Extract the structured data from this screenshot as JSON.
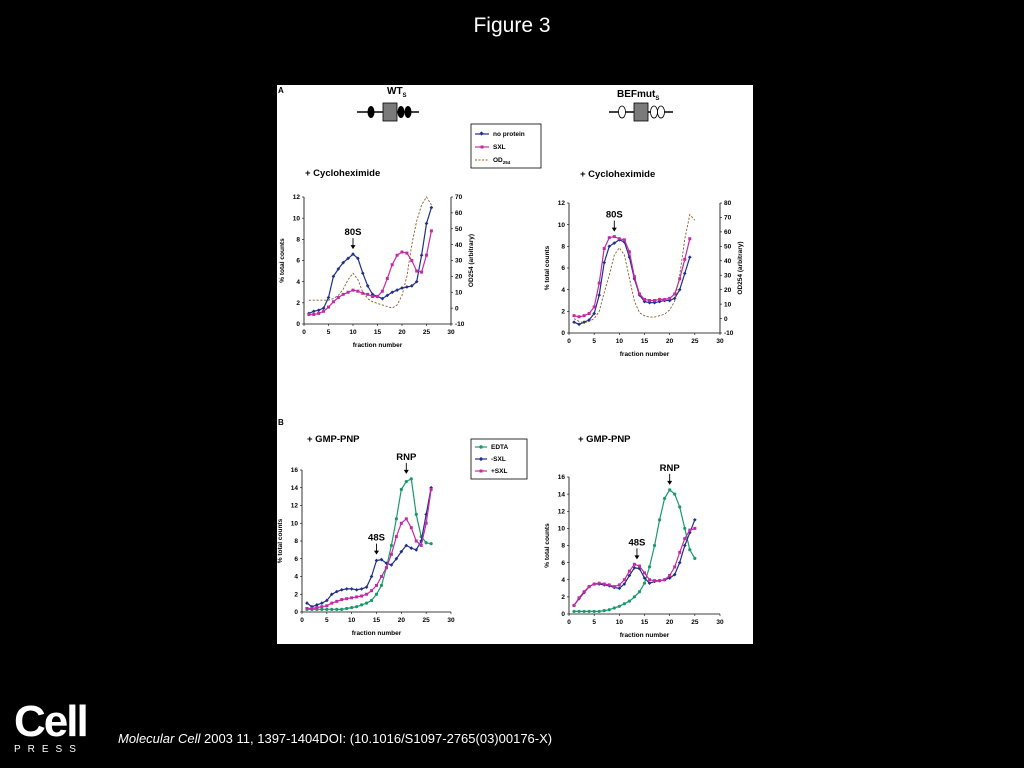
{
  "page": {
    "title": "Figure 3",
    "citation_journal": "Molecular Cell",
    "citation_rest": " 2003 11, 1397-1404DOI: (10.1016/S1097-2765(03)00176-X)",
    "logo_main": "Cell",
    "logo_sub": "PRESS"
  },
  "panel": {
    "label_a": "A",
    "label_b": "B",
    "construct_wt": "WT",
    "construct_wt_sub": "S",
    "construct_mut": "BEFmut",
    "construct_mut_sub": "S",
    "legend_a": [
      {
        "label": "no protein",
        "sub": ""
      },
      {
        "label": "SXL",
        "sub": ""
      },
      {
        "label": "OD",
        "sub": "254"
      }
    ],
    "legend_b": [
      {
        "label": "EDTA"
      },
      {
        "label": "-SXL"
      },
      {
        "label": "+SXL"
      }
    ],
    "colors": {
      "blue": "#1f2f8a",
      "magenta": "#c42aa6",
      "green": "#1a9a6a",
      "od": "#8b5a2b"
    }
  },
  "chart_data": [
    {
      "id": "a-wt",
      "type": "line",
      "title": "+ Cycloheximide",
      "xlabel": "fraction number",
      "ylabel": "% total counts",
      "y2label": "OD254 (arbitrary)",
      "xlim": [
        0,
        30
      ],
      "ylim": [
        0,
        12
      ],
      "y2lim": [
        -10,
        70
      ],
      "xticks": [
        0,
        5,
        10,
        15,
        20,
        25,
        30
      ],
      "yticks": [
        0,
        2,
        4,
        6,
        8,
        10,
        12
      ],
      "y2ticks": [
        -10,
        0,
        10,
        20,
        30,
        40,
        50,
        60,
        70
      ],
      "annotations": [
        {
          "text": "80S",
          "x": 10
        }
      ],
      "series": [
        {
          "name": "no protein",
          "color": "#1f2f8a",
          "marker": "diamond",
          "x": [
            1,
            2,
            3,
            4,
            5,
            6,
            7,
            8,
            9,
            10,
            11,
            12,
            13,
            14,
            15,
            16,
            17,
            18,
            19,
            20,
            21,
            22,
            23,
            24,
            25,
            26
          ],
          "y": [
            1.0,
            1.2,
            1.3,
            1.5,
            2.5,
            4.5,
            5.2,
            5.8,
            6.2,
            6.6,
            6.2,
            4.8,
            3.6,
            2.8,
            2.6,
            2.4,
            2.7,
            3.0,
            3.2,
            3.4,
            3.5,
            3.6,
            4.0,
            6.5,
            9.5,
            11.0
          ]
        },
        {
          "name": "SXL",
          "color": "#c42aa6",
          "marker": "square",
          "x": [
            1,
            2,
            3,
            4,
            5,
            6,
            7,
            8,
            9,
            10,
            11,
            12,
            13,
            14,
            15,
            16,
            17,
            18,
            19,
            20,
            21,
            22,
            23,
            24,
            25,
            26
          ],
          "y": [
            0.9,
            0.9,
            1.0,
            1.2,
            1.6,
            2.1,
            2.5,
            2.8,
            3.0,
            3.2,
            3.1,
            2.9,
            2.8,
            2.6,
            2.6,
            3.1,
            4.3,
            5.6,
            6.5,
            6.8,
            6.7,
            6.0,
            5.0,
            4.9,
            6.5,
            8.8
          ]
        },
        {
          "name": "OD254",
          "color": "#8b5a2b",
          "dash": true,
          "y_axis": "right",
          "x": [
            1,
            2,
            3,
            4,
            5,
            6,
            7,
            8,
            9,
            10,
            11,
            12,
            13,
            14,
            15,
            16,
            17,
            18,
            19,
            20,
            21,
            22,
            23,
            24,
            25,
            26
          ],
          "y": [
            5,
            5,
            5,
            5,
            5,
            6,
            8,
            12,
            18,
            22,
            18,
            10,
            6,
            4,
            3,
            2,
            1,
            0,
            2,
            8,
            20,
            40,
            55,
            65,
            70,
            65
          ]
        }
      ]
    },
    {
      "id": "a-mut",
      "type": "line",
      "title": "+ Cycloheximide",
      "xlabel": "fraction number",
      "ylabel": "% total counts",
      "y2label": "OD254 (arbitrary)",
      "xlim": [
        0,
        30
      ],
      "ylim": [
        0,
        12
      ],
      "y2lim": [
        -10,
        80
      ],
      "xticks": [
        0,
        5,
        10,
        15,
        20,
        25,
        30
      ],
      "yticks": [
        0,
        2,
        4,
        6,
        8,
        10,
        12
      ],
      "y2ticks": [
        -10,
        0,
        10,
        20,
        30,
        40,
        50,
        60,
        70,
        80
      ],
      "annotations": [
        {
          "text": "80S",
          "x": 9
        }
      ],
      "series": [
        {
          "name": "no protein",
          "color": "#1f2f8a",
          "marker": "diamond",
          "x": [
            1,
            2,
            3,
            4,
            5,
            6,
            7,
            8,
            9,
            10,
            11,
            12,
            13,
            14,
            15,
            16,
            17,
            18,
            19,
            20,
            21,
            22,
            23,
            24
          ],
          "y": [
            1.0,
            0.8,
            1.0,
            1.2,
            1.8,
            3.5,
            6.5,
            8.0,
            8.3,
            8.6,
            8.4,
            7.0,
            5.0,
            3.5,
            2.9,
            2.8,
            2.8,
            2.9,
            3.0,
            3.0,
            3.2,
            4.0,
            5.5,
            7.0
          ]
        },
        {
          "name": "SXL",
          "color": "#c42aa6",
          "marker": "square",
          "x": [
            1,
            2,
            3,
            4,
            5,
            6,
            7,
            8,
            9,
            10,
            11,
            12,
            13,
            14,
            15,
            16,
            17,
            18,
            19,
            20,
            21,
            22,
            23,
            24
          ],
          "y": [
            1.6,
            1.5,
            1.6,
            1.8,
            2.4,
            4.6,
            7.8,
            8.8,
            8.9,
            8.7,
            8.6,
            7.5,
            5.2,
            3.6,
            3.1,
            3.0,
            3.0,
            3.1,
            3.1,
            3.2,
            3.6,
            5.0,
            6.8,
            8.7
          ]
        },
        {
          "name": "OD254",
          "color": "#8b5a2b",
          "dash": true,
          "y_axis": "right",
          "x": [
            1,
            2,
            3,
            4,
            5,
            6,
            7,
            8,
            9,
            10,
            11,
            12,
            13,
            14,
            15,
            16,
            17,
            18,
            19,
            20,
            21,
            22,
            23,
            24,
            25
          ],
          "y": [
            0,
            -2,
            -3,
            -2,
            0,
            5,
            18,
            30,
            44,
            49,
            44,
            28,
            12,
            4,
            2,
            1,
            1,
            2,
            3,
            6,
            12,
            30,
            55,
            72,
            68
          ]
        }
      ]
    },
    {
      "id": "b-wt",
      "type": "line",
      "title": "+ GMP-PNP",
      "xlabel": "fraction number",
      "ylabel": "% total counts",
      "xlim": [
        0,
        30
      ],
      "ylim": [
        0,
        16
      ],
      "xticks": [
        0,
        5,
        10,
        15,
        20,
        25,
        30
      ],
      "yticks": [
        0,
        2,
        4,
        6,
        8,
        10,
        12,
        14,
        16
      ],
      "annotations": [
        {
          "text": "48S",
          "x": 15
        },
        {
          "text": "RNP",
          "x": 21
        }
      ],
      "series": [
        {
          "name": "EDTA",
          "color": "#1a9a6a",
          "marker": "circle",
          "x": [
            1,
            2,
            3,
            4,
            5,
            6,
            7,
            8,
            9,
            10,
            11,
            12,
            13,
            14,
            15,
            16,
            17,
            18,
            19,
            20,
            21,
            22,
            23,
            24,
            25,
            26
          ],
          "y": [
            0.3,
            0.3,
            0.3,
            0.3,
            0.3,
            0.3,
            0.3,
            0.3,
            0.4,
            0.5,
            0.6,
            0.8,
            1.0,
            1.3,
            2.0,
            3.0,
            5.0,
            7.5,
            10.5,
            13.8,
            14.7,
            15.0,
            11.0,
            8.5,
            7.8,
            7.7
          ]
        },
        {
          "name": "-SXL",
          "color": "#1f2f8a",
          "marker": "diamond",
          "x": [
            1,
            2,
            3,
            4,
            5,
            6,
            7,
            8,
            9,
            10,
            11,
            12,
            13,
            14,
            15,
            16,
            17,
            18,
            19,
            20,
            21,
            22,
            23,
            24,
            25,
            26
          ],
          "y": [
            1.0,
            0.6,
            0.8,
            1.0,
            1.3,
            2.0,
            2.3,
            2.5,
            2.6,
            2.6,
            2.5,
            2.6,
            2.8,
            4.0,
            5.8,
            5.9,
            5.5,
            5.3,
            6.0,
            6.8,
            7.5,
            7.2,
            7.0,
            8.0,
            11.0,
            14.0
          ]
        },
        {
          "name": "+SXL",
          "color": "#c42aa6",
          "marker": "square",
          "x": [
            1,
            2,
            3,
            4,
            5,
            6,
            7,
            8,
            9,
            10,
            11,
            12,
            13,
            14,
            15,
            16,
            17,
            18,
            19,
            20,
            21,
            22,
            23,
            24,
            25,
            26
          ],
          "y": [
            0.4,
            0.4,
            0.5,
            0.6,
            0.7,
            1.0,
            1.2,
            1.4,
            1.5,
            1.6,
            1.7,
            1.8,
            2.0,
            2.4,
            3.0,
            4.0,
            5.0,
            6.5,
            8.5,
            10.0,
            10.5,
            9.5,
            8.0,
            7.5,
            10.0,
            13.8
          ]
        }
      ]
    },
    {
      "id": "b-mut",
      "type": "line",
      "title": "+ GMP-PNP",
      "xlabel": "fraction number",
      "ylabel": "% total counts",
      "xlim": [
        0,
        30
      ],
      "ylim": [
        0,
        16
      ],
      "xticks": [
        0,
        5,
        10,
        15,
        20,
        25,
        30
      ],
      "yticks": [
        0,
        2,
        4,
        6,
        8,
        10,
        12,
        14,
        16
      ],
      "annotations": [
        {
          "text": "48S",
          "x": 13.5
        },
        {
          "text": "RNP",
          "x": 20
        }
      ],
      "series": [
        {
          "name": "EDTA",
          "color": "#1a9a6a",
          "marker": "circle",
          "x": [
            1,
            2,
            3,
            4,
            5,
            6,
            7,
            8,
            9,
            10,
            11,
            12,
            13,
            14,
            15,
            16,
            17,
            18,
            19,
            20,
            21,
            22,
            23,
            24,
            25
          ],
          "y": [
            0.3,
            0.3,
            0.3,
            0.3,
            0.3,
            0.3,
            0.4,
            0.5,
            0.7,
            0.9,
            1.2,
            1.5,
            2.0,
            2.6,
            3.6,
            5.5,
            8.0,
            11.0,
            13.5,
            14.5,
            14.0,
            12.5,
            10.0,
            7.5,
            6.5
          ]
        },
        {
          "name": "-SXL",
          "color": "#1f2f8a",
          "marker": "diamond",
          "x": [
            1,
            2,
            3,
            4,
            5,
            6,
            7,
            8,
            9,
            10,
            11,
            12,
            13,
            14,
            15,
            16,
            17,
            18,
            19,
            20,
            21,
            22,
            23,
            24,
            25
          ],
          "y": [
            1.0,
            1.8,
            2.5,
            3.2,
            3.5,
            3.5,
            3.4,
            3.3,
            3.1,
            3.0,
            3.5,
            4.5,
            5.4,
            5.3,
            4.2,
            3.6,
            3.8,
            3.9,
            4.0,
            4.2,
            4.6,
            6.0,
            8.0,
            9.5,
            11.0
          ]
        },
        {
          "name": "+SXL",
          "color": "#c42aa6",
          "marker": "square",
          "x": [
            1,
            2,
            3,
            4,
            5,
            6,
            7,
            8,
            9,
            10,
            11,
            12,
            13,
            14,
            15,
            16,
            17,
            18,
            19,
            20,
            21,
            22,
            23,
            24,
            25
          ],
          "y": [
            1.0,
            1.9,
            2.6,
            3.2,
            3.5,
            3.6,
            3.5,
            3.4,
            3.2,
            3.4,
            4.0,
            5.0,
            5.8,
            5.6,
            4.8,
            4.0,
            3.9,
            3.9,
            4.0,
            4.5,
            5.5,
            7.2,
            8.8,
            9.8,
            10.0
          ]
        }
      ]
    }
  ]
}
